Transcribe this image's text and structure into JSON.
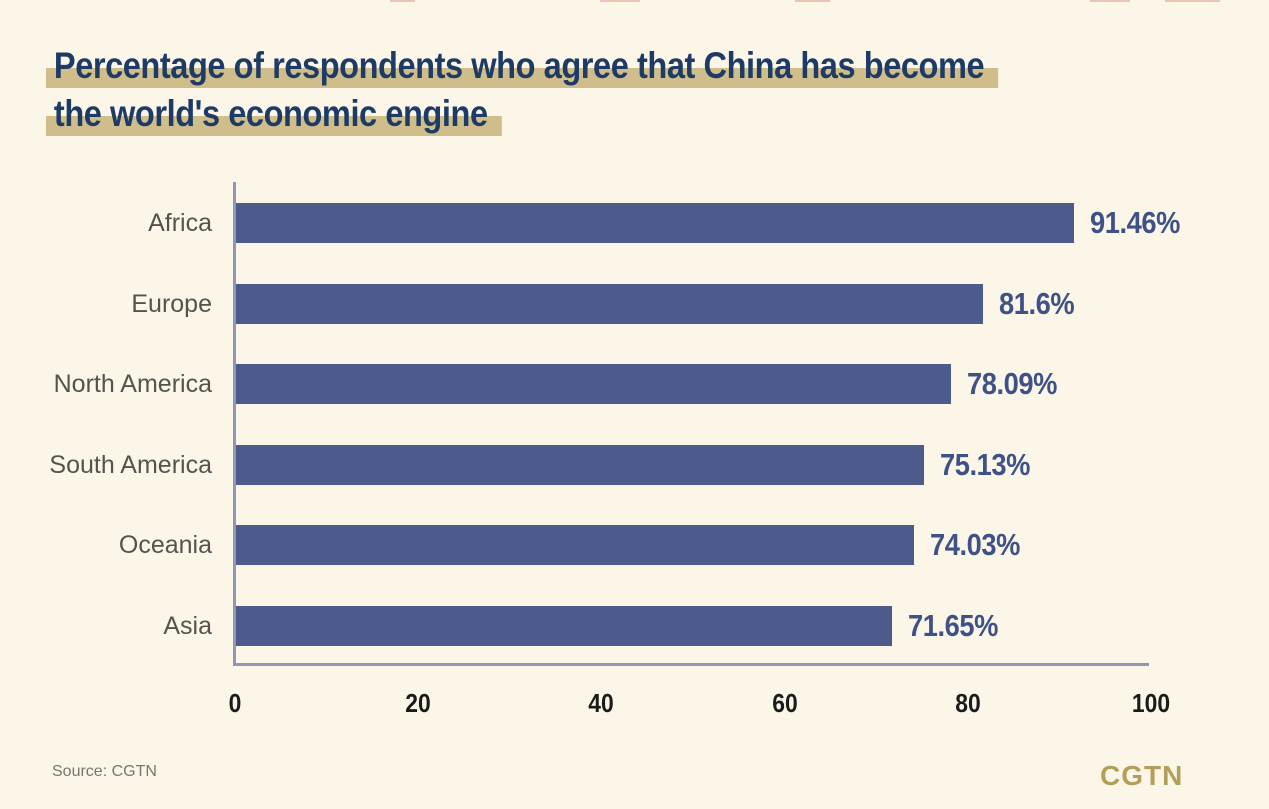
{
  "page": {
    "background_color": "#fbf6e8",
    "title_lines": [
      "Percentage of respondents who agree that China has become",
      "the world's economic engine"
    ],
    "title_color": "#1e3a66",
    "title_highlight_color": "#cfbe8a",
    "source_text": "Source: CGTN",
    "brand_logo_text": "CGTN",
    "brand_color": "#b3a058"
  },
  "chart_data": {
    "type": "bar",
    "orientation": "horizontal",
    "title": "Percentage of respondents who agree that China has become the world's economic engine",
    "categories": [
      "Africa",
      "Europe",
      "North America",
      "South America",
      "Oceania",
      "Asia"
    ],
    "values": [
      91.46,
      81.6,
      78.09,
      75.13,
      74.03,
      71.65
    ],
    "value_labels": [
      "91.46%",
      "81.6%",
      "78.09%",
      "75.13%",
      "74.03%",
      "71.65%"
    ],
    "x_ticks": [
      "0",
      "20",
      "40",
      "60",
      "80",
      "100"
    ],
    "x_tick_values": [
      0,
      20,
      40,
      60,
      80,
      100
    ],
    "xlim": [
      0,
      100
    ],
    "grid": false,
    "legend": false,
    "bar_color": "#4c5a8c",
    "value_label_color": "#3e5288",
    "category_label_color": "#54544f",
    "axis_color": "#8e98b4",
    "tick_label_color": "#1b1b1b"
  }
}
